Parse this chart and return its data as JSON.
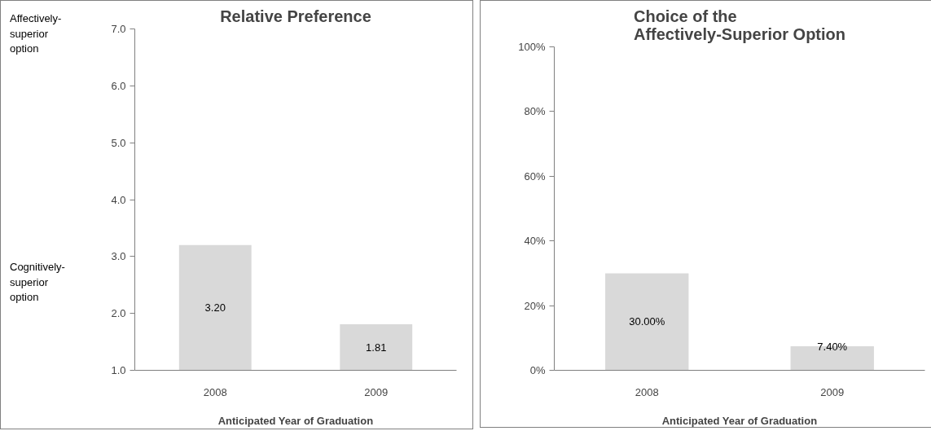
{
  "chart_data": [
    {
      "type": "bar",
      "title": "Relative Preference",
      "xlabel": "Anticipated Year of Graduation",
      "categories": [
        "2008",
        "2009"
      ],
      "series": [
        {
          "color": "#d9d9d9",
          "values": [
            3.2,
            1.81
          ]
        }
      ],
      "value_labels": [
        "3.20",
        "1.81"
      ],
      "ylim": [
        1,
        7
      ],
      "yticks": [
        {
          "value": 1,
          "label": "1.0"
        },
        {
          "value": 2,
          "label": "2.0"
        },
        {
          "value": 3,
          "label": "3.0"
        },
        {
          "value": 4,
          "label": "4.0"
        },
        {
          "value": 5,
          "label": "5.0"
        },
        {
          "value": 6,
          "label": "6.0"
        },
        {
          "value": 7,
          "label": "7.0"
        }
      ],
      "annotations": [
        "Affectively-superior option",
        "Cognitively-superior option"
      ]
    },
    {
      "type": "bar",
      "title": "Choice of the\nAffectively-Superior Option",
      "xlabel": "Anticipated Year of Graduation",
      "categories": [
        "2008",
        "2009"
      ],
      "series": [
        {
          "color": "#d9d9d9",
          "values": [
            30,
            7.4
          ]
        }
      ],
      "value_labels": [
        "30.00%",
        "7.40%"
      ],
      "ylim": [
        0,
        100
      ],
      "yticks": [
        {
          "value": 0,
          "label": "0%"
        },
        {
          "value": 20,
          "label": "20%"
        },
        {
          "value": 40,
          "label": "40%"
        },
        {
          "value": 60,
          "label": "60%"
        },
        {
          "value": 80,
          "label": "80%"
        },
        {
          "value": 100,
          "label": "100%"
        }
      ]
    }
  ]
}
